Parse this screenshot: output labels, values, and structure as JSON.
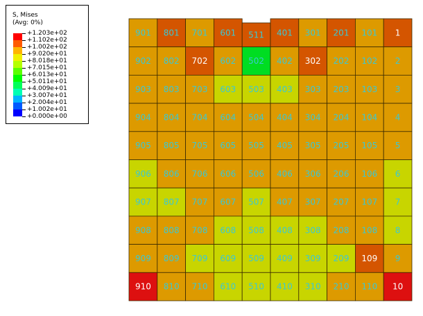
{
  "legend": {
    "title_line1": "S, Mises",
    "title_line2": "(Avg: 0%)",
    "entries": [
      {
        "label": "+1.203e+02",
        "color": "#ff0000"
      },
      {
        "label": "+1.102e+02",
        "color": "#ff5a00"
      },
      {
        "label": "+1.002e+02",
        "color": "#ffb400"
      },
      {
        "label": "+9.020e+01",
        "color": "#f0f000"
      },
      {
        "label": "+8.018e+01",
        "color": "#b4ff00"
      },
      {
        "label": "+7.015e+01",
        "color": "#5aff00"
      },
      {
        "label": "+6.013e+01",
        "color": "#00ff00"
      },
      {
        "label": "+5.011e+01",
        "color": "#00ff5a"
      },
      {
        "label": "+4.009e+01",
        "color": "#00ffb4"
      },
      {
        "label": "+3.007e+01",
        "color": "#00b4ff"
      },
      {
        "label": "+2.004e+01",
        "color": "#005aff"
      },
      {
        "label": "+1.002e+01",
        "color": "#0000ff"
      },
      {
        "label": "+0.000e+00",
        "color": ""
      }
    ]
  },
  "palette": {
    "A": "#dd9a00",
    "R": "#d45500",
    "Y": "#c8d500",
    "G": "#00dd22",
    "X": "#dd1010",
    "grid_line": "#3a2a00",
    "label_color": "#3cc8d2",
    "label_white": "#ffffff"
  },
  "mesh": {
    "rows": [
      {
        "labels": [
          "901",
          "801",
          "701",
          "601",
          "511",
          "401",
          "301",
          "201",
          "101",
          "1"
        ],
        "colors": [
          "A",
          "R",
          "A",
          "R",
          "R",
          "R",
          "A",
          "R",
          "A",
          "R"
        ]
      },
      {
        "labels": [
          "902",
          "802",
          "702",
          "602",
          "502",
          "402",
          "302",
          "202",
          "102",
          "2"
        ],
        "colors": [
          "A",
          "A",
          "R",
          "A",
          "G",
          "A",
          "R",
          "A",
          "A",
          "A"
        ]
      },
      {
        "labels": [
          "903",
          "803",
          "703",
          "603",
          "503",
          "403",
          "303",
          "203",
          "103",
          "3"
        ],
        "colors": [
          "A",
          "A",
          "A",
          "Y",
          "Y",
          "Y",
          "A",
          "A",
          "A",
          "A"
        ]
      },
      {
        "labels": [
          "904",
          "804",
          "704",
          "604",
          "504",
          "404",
          "304",
          "204",
          "104",
          "4"
        ],
        "colors": [
          "A",
          "A",
          "A",
          "A",
          "A",
          "A",
          "A",
          "A",
          "A",
          "A"
        ]
      },
      {
        "labels": [
          "905",
          "805",
          "705",
          "605",
          "505",
          "405",
          "305",
          "205",
          "105",
          "5"
        ],
        "colors": [
          "A",
          "A",
          "A",
          "A",
          "A",
          "A",
          "A",
          "A",
          "A",
          "A"
        ]
      },
      {
        "labels": [
          "906",
          "806",
          "706",
          "606",
          "506",
          "406",
          "306",
          "206",
          "106",
          "6"
        ],
        "colors": [
          "Y",
          "A",
          "A",
          "A",
          "A",
          "A",
          "A",
          "A",
          "A",
          "Y"
        ]
      },
      {
        "labels": [
          "907",
          "807",
          "707",
          "607",
          "507",
          "407",
          "307",
          "207",
          "107",
          "7"
        ],
        "colors": [
          "Y",
          "Y",
          "A",
          "A",
          "Y",
          "A",
          "A",
          "A",
          "A",
          "Y"
        ]
      },
      {
        "labels": [
          "908",
          "808",
          "708",
          "608",
          "508",
          "408",
          "308",
          "208",
          "108",
          "8"
        ],
        "colors": [
          "A",
          "A",
          "A",
          "Y",
          "Y",
          "Y",
          "Y",
          "A",
          "A",
          "Y"
        ]
      },
      {
        "labels": [
          "909",
          "809",
          "709",
          "609",
          "509",
          "409",
          "309",
          "209",
          "109",
          "9"
        ],
        "colors": [
          "A",
          "A",
          "Y",
          "Y",
          "Y",
          "Y",
          "Y",
          "Y",
          "R",
          "A"
        ]
      },
      {
        "labels": [
          "910",
          "810",
          "710",
          "610",
          "510",
          "410",
          "310",
          "210",
          "110",
          "10"
        ],
        "colors": [
          "X",
          "A",
          "A",
          "Y",
          "Y",
          "Y",
          "Y",
          "A",
          "A",
          "X"
        ]
      }
    ],
    "white_labels": [
      "1",
      "702",
      "302",
      "910",
      "10",
      "109"
    ]
  }
}
